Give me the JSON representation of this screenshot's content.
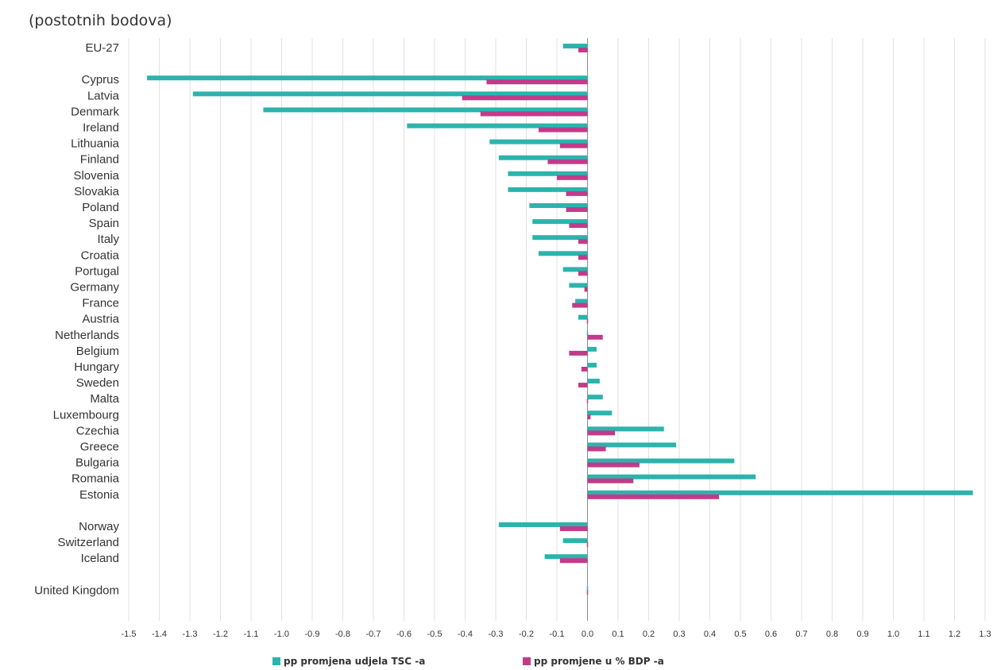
{
  "chart_data": {
    "type": "bar",
    "orientation": "horizontal",
    "subtitle": "(postotnih bodova)",
    "xlim": [
      -1.5,
      1.3
    ],
    "xticks": [
      -1.5,
      -1.4,
      -1.3,
      -1.2,
      -1.1,
      -1.0,
      -0.9,
      -0.8,
      -0.7,
      -0.6,
      -0.5,
      -0.4,
      -0.3,
      -0.2,
      -0.1,
      0.0,
      0.1,
      0.2,
      0.3,
      0.4,
      0.5,
      0.6,
      0.7,
      0.8,
      0.9,
      1.0,
      1.1,
      1.2,
      1.3
    ],
    "xtick_labels": [
      "-1.5",
      "-1.4",
      "-1.3",
      "-1.2",
      "-1.1",
      "-1.0",
      "-0.9",
      "-0.8",
      "-0.7",
      "-0.6",
      "-0.5",
      "-0.4",
      "-0.3",
      "-0.2",
      "-0.1",
      "0.0",
      "0.1",
      "0.2",
      "0.3",
      "0.4",
      "0.5",
      "0.6",
      "0.7",
      "0.8",
      "0.9",
      "1.0",
      "1.1",
      "1.2",
      "1.3"
    ],
    "grid": "vertical",
    "legend_position": "bottom",
    "categories": [
      "EU-27",
      "",
      "Cyprus",
      "Latvia",
      "Denmark",
      "Ireland",
      "Lithuania",
      "Finland",
      "Slovenia",
      "Slovakia",
      "Poland",
      "Spain",
      "Italy",
      "Croatia",
      "Portugal",
      "Germany",
      "France",
      "Austria",
      "Netherlands",
      "Belgium",
      "Hungary",
      "Sweden",
      "Malta",
      "Luxembourg",
      "Czechia",
      "Greece",
      "Bulgaria",
      "Romania",
      "Estonia",
      "",
      "Norway",
      "Switzerland",
      "Iceland",
      "",
      "United Kingdom"
    ],
    "series": [
      {
        "name": "pp promjena udjela TSC -a",
        "color": "#2db3ad",
        "values": [
          -0.08,
          null,
          -1.44,
          -1.29,
          -1.06,
          -0.59,
          -0.32,
          -0.29,
          -0.26,
          -0.26,
          -0.19,
          -0.18,
          -0.18,
          -0.16,
          -0.08,
          -0.06,
          -0.04,
          -0.03,
          0.0,
          0.03,
          0.03,
          0.04,
          0.05,
          0.08,
          0.25,
          0.29,
          0.48,
          0.55,
          1.26,
          null,
          -0.29,
          -0.08,
          -0.14,
          null,
          0.0
        ]
      },
      {
        "name": "pp promjene u % BDP -a",
        "color": "#c23b8a",
        "values": [
          -0.03,
          null,
          -0.33,
          -0.41,
          -0.35,
          -0.16,
          -0.09,
          -0.13,
          -0.1,
          -0.07,
          -0.07,
          -0.06,
          -0.03,
          -0.03,
          -0.03,
          -0.01,
          -0.05,
          0.0,
          0.05,
          -0.06,
          -0.02,
          -0.03,
          0.0,
          0.01,
          0.09,
          0.06,
          0.17,
          0.15,
          0.43,
          null,
          -0.09,
          0.0,
          -0.09,
          null,
          0.0
        ]
      }
    ]
  }
}
